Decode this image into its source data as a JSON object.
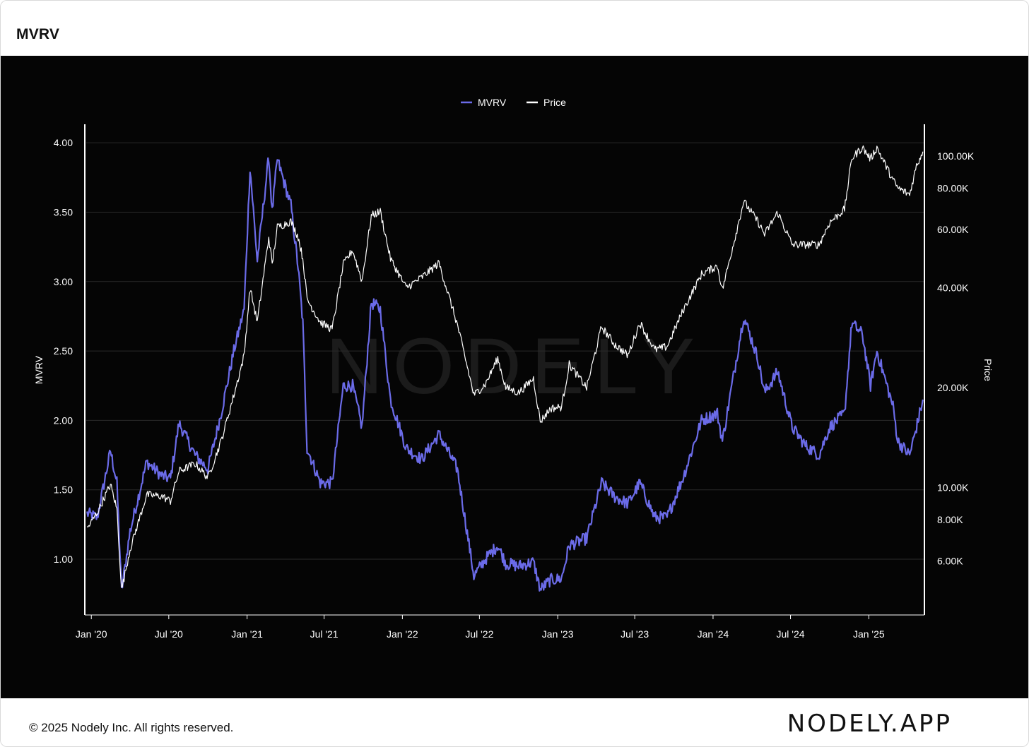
{
  "header": {
    "title": "MVRV"
  },
  "footer": {
    "copyright": "© 2025 Nodely Inc. All rights reserved.",
    "brand": "NODELY.APP"
  },
  "watermark": "NODELY",
  "colors": {
    "mvrv": "#6b6be8",
    "price": "#ffffff",
    "background": "#050505",
    "grid": "#2a2a2a"
  },
  "chart_data": {
    "type": "line",
    "legend": [
      "MVRV",
      "Price"
    ],
    "legend_position": "top-center",
    "grid": true,
    "x_ticks": [
      "Jan '20",
      "Jul '20",
      "Jan '21",
      "Jul '21",
      "Jan '22",
      "Jul '22",
      "Jan '23",
      "Jul '23",
      "Jan '24",
      "Jul '24",
      "Jan '25"
    ],
    "y_left": {
      "label": "MVRV",
      "ticks": [
        "1.00",
        "1.50",
        "2.00",
        "2.50",
        "3.00",
        "3.50",
        "4.00"
      ]
    },
    "y_right": {
      "label": "Price",
      "scale": "log",
      "ticks": [
        "6.00K",
        "8.00K",
        "10.00K",
        "20.00K",
        "40.00K",
        "60.00K",
        "80.00K",
        "100.00K"
      ]
    },
    "series": [
      {
        "name": "MVRV",
        "axis": "left",
        "points": [
          [
            "2019-12-22",
            1.33
          ],
          [
            "2020-01-15",
            1.3
          ],
          [
            "2020-02-15",
            1.78
          ],
          [
            "2020-03-01",
            1.55
          ],
          [
            "2020-03-12",
            0.77
          ],
          [
            "2020-04-01",
            1.2
          ],
          [
            "2020-05-10",
            1.7
          ],
          [
            "2020-06-15",
            1.6
          ],
          [
            "2020-07-05",
            1.58
          ],
          [
            "2020-07-25",
            1.98
          ],
          [
            "2020-09-01",
            1.75
          ],
          [
            "2020-10-01",
            1.65
          ],
          [
            "2020-11-01",
            2.05
          ],
          [
            "2020-12-01",
            2.5
          ],
          [
            "2020-12-25",
            2.8
          ],
          [
            "2021-01-08",
            3.82
          ],
          [
            "2021-01-25",
            3.15
          ],
          [
            "2021-02-21",
            3.9
          ],
          [
            "2021-03-01",
            3.5
          ],
          [
            "2021-03-13",
            3.88
          ],
          [
            "2021-04-14",
            3.55
          ],
          [
            "2021-05-01",
            3.1
          ],
          [
            "2021-05-12",
            2.7
          ],
          [
            "2021-05-22",
            1.8
          ],
          [
            "2021-06-22",
            1.55
          ],
          [
            "2021-07-20",
            1.55
          ],
          [
            "2021-08-15",
            2.25
          ],
          [
            "2021-09-06",
            2.25
          ],
          [
            "2021-09-28",
            1.95
          ],
          [
            "2021-10-20",
            2.85
          ],
          [
            "2021-11-10",
            2.8
          ],
          [
            "2021-12-04",
            2.15
          ],
          [
            "2022-01-10",
            1.8
          ],
          [
            "2022-02-15",
            1.72
          ],
          [
            "2022-03-28",
            1.9
          ],
          [
            "2022-05-10",
            1.65
          ],
          [
            "2022-06-18",
            0.88
          ],
          [
            "2022-07-15",
            1.0
          ],
          [
            "2022-08-13",
            1.1
          ],
          [
            "2022-09-01",
            0.97
          ],
          [
            "2022-10-01",
            0.95
          ],
          [
            "2022-11-05",
            0.98
          ],
          [
            "2022-11-21",
            0.78
          ],
          [
            "2022-12-15",
            0.85
          ],
          [
            "2023-01-10",
            0.86
          ],
          [
            "2023-01-28",
            1.1
          ],
          [
            "2023-03-10",
            1.15
          ],
          [
            "2023-04-14",
            1.55
          ],
          [
            "2023-05-15",
            1.45
          ],
          [
            "2023-06-15",
            1.4
          ],
          [
            "2023-07-13",
            1.55
          ],
          [
            "2023-08-17",
            1.3
          ],
          [
            "2023-09-15",
            1.3
          ],
          [
            "2023-10-24",
            1.6
          ],
          [
            "2023-12-05",
            2.0
          ],
          [
            "2024-01-11",
            2.05
          ],
          [
            "2024-01-23",
            1.85
          ],
          [
            "2024-03-13",
            2.75
          ],
          [
            "2024-04-15",
            2.45
          ],
          [
            "2024-05-01",
            2.2
          ],
          [
            "2024-06-01",
            2.35
          ],
          [
            "2024-07-05",
            1.95
          ],
          [
            "2024-08-05",
            1.82
          ],
          [
            "2024-09-06",
            1.75
          ],
          [
            "2024-10-01",
            1.95
          ],
          [
            "2024-11-05",
            2.05
          ],
          [
            "2024-11-22",
            2.7
          ],
          [
            "2024-12-17",
            2.62
          ],
          [
            "2025-01-05",
            2.25
          ],
          [
            "2025-01-20",
            2.5
          ],
          [
            "2025-02-27",
            2.1
          ],
          [
            "2025-03-10",
            1.85
          ],
          [
            "2025-04-07",
            1.75
          ],
          [
            "2025-04-23",
            1.95
          ],
          [
            "2025-05-08",
            2.15
          ]
        ]
      },
      {
        "name": "Price",
        "axis": "right",
        "points": [
          [
            "2019-12-22",
            7500
          ],
          [
            "2020-01-15",
            8400
          ],
          [
            "2020-02-15",
            10200
          ],
          [
            "2020-03-01",
            8600
          ],
          [
            "2020-03-12",
            4900
          ],
          [
            "2020-04-01",
            6500
          ],
          [
            "2020-05-10",
            9500
          ],
          [
            "2020-06-15",
            9400
          ],
          [
            "2020-07-05",
            9100
          ],
          [
            "2020-07-25",
            11200
          ],
          [
            "2020-09-01",
            11800
          ],
          [
            "2020-10-01",
            10700
          ],
          [
            "2020-11-01",
            13800
          ],
          [
            "2020-12-01",
            19000
          ],
          [
            "2020-12-25",
            25000
          ],
          [
            "2021-01-08",
            40000
          ],
          [
            "2021-01-25",
            31500
          ],
          [
            "2021-02-21",
            57000
          ],
          [
            "2021-03-01",
            47000
          ],
          [
            "2021-03-13",
            61000
          ],
          [
            "2021-04-14",
            63500
          ],
          [
            "2021-05-01",
            57000
          ],
          [
            "2021-05-12",
            49000
          ],
          [
            "2021-05-22",
            37000
          ],
          [
            "2021-06-22",
            31500
          ],
          [
            "2021-07-20",
            30000
          ],
          [
            "2021-08-15",
            47000
          ],
          [
            "2021-09-06",
            52000
          ],
          [
            "2021-09-28",
            42000
          ],
          [
            "2021-10-20",
            66000
          ],
          [
            "2021-11-10",
            68000
          ],
          [
            "2021-12-04",
            49000
          ],
          [
            "2022-01-10",
            40000
          ],
          [
            "2022-02-15",
            43000
          ],
          [
            "2022-03-28",
            47500
          ],
          [
            "2022-05-10",
            31000
          ],
          [
            "2022-06-18",
            19000
          ],
          [
            "2022-07-15",
            20500
          ],
          [
            "2022-08-13",
            24500
          ],
          [
            "2022-09-01",
            20000
          ],
          [
            "2022-10-01",
            19300
          ],
          [
            "2022-11-05",
            21300
          ],
          [
            "2022-11-21",
            15800
          ],
          [
            "2022-12-15",
            17300
          ],
          [
            "2023-01-10",
            17500
          ],
          [
            "2023-01-28",
            23500
          ],
          [
            "2023-03-10",
            20000
          ],
          [
            "2023-04-14",
            30500
          ],
          [
            "2023-05-15",
            27000
          ],
          [
            "2023-06-15",
            25000
          ],
          [
            "2023-07-13",
            31400
          ],
          [
            "2023-08-17",
            26000
          ],
          [
            "2023-09-15",
            26600
          ],
          [
            "2023-10-24",
            34500
          ],
          [
            "2023-12-05",
            44000
          ],
          [
            "2024-01-11",
            46600
          ],
          [
            "2024-01-23",
            39500
          ],
          [
            "2024-03-13",
            73000
          ],
          [
            "2024-04-15",
            63500
          ],
          [
            "2024-05-01",
            58000
          ],
          [
            "2024-06-01",
            67500
          ],
          [
            "2024-07-05",
            54000
          ],
          [
            "2024-08-05",
            54000
          ],
          [
            "2024-09-06",
            54000
          ],
          [
            "2024-10-01",
            63000
          ],
          [
            "2024-11-05",
            69000
          ],
          [
            "2024-11-22",
            98500
          ],
          [
            "2024-12-17",
            106000
          ],
          [
            "2025-01-05",
            98000
          ],
          [
            "2025-01-20",
            106000
          ],
          [
            "2025-02-27",
            84500
          ],
          [
            "2025-03-10",
            80000
          ],
          [
            "2025-04-07",
            76500
          ],
          [
            "2025-04-23",
            93500
          ],
          [
            "2025-05-08",
            103000
          ]
        ]
      }
    ]
  }
}
